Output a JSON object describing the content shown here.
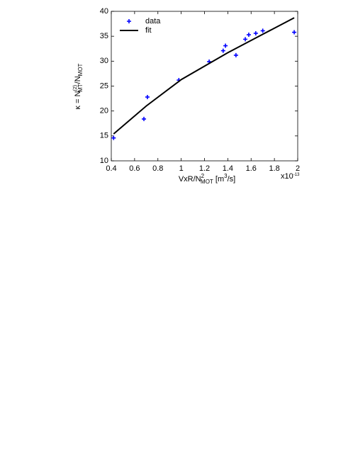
{
  "chart_data": {
    "type": "scatter",
    "xlabel": [
      "VxR/N",
      "2",
      "MOT",
      " [m",
      "3",
      "/s]"
    ],
    "ylabel": [
      "κ = N",
      "(2)",
      "MT",
      "/N",
      "MOT"
    ],
    "x_offset_label": [
      "x10",
      "-13"
    ],
    "xlim": [
      0.4,
      2
    ],
    "xticks": [
      0.4,
      0.6,
      0.8,
      1,
      1.2,
      1.4,
      1.6,
      1.8,
      2
    ],
    "ylim": [
      10,
      40
    ],
    "yticks": [
      10,
      15,
      20,
      25,
      30,
      35,
      40
    ],
    "legend": "upper left",
    "series": [
      {
        "name": "data",
        "type": "scatter",
        "color": "#0000ff",
        "x": [
          0.42,
          0.68,
          0.71,
          0.98,
          1.24,
          1.36,
          1.38,
          1.47,
          1.55,
          1.58,
          1.64,
          1.7,
          1.97
        ],
        "values": [
          14.6,
          18.4,
          22.8,
          26.2,
          29.9,
          32.1,
          33.1,
          31.2,
          34.4,
          35.3,
          35.6,
          36.1,
          35.8
        ]
      },
      {
        "name": "fit",
        "type": "line",
        "color": "#000000",
        "x": [
          0.42,
          0.7,
          1.0,
          1.4,
          1.7,
          1.97
        ],
        "values": [
          15.4,
          21.0,
          26.3,
          31.7,
          35.4,
          38.7
        ]
      }
    ]
  }
}
